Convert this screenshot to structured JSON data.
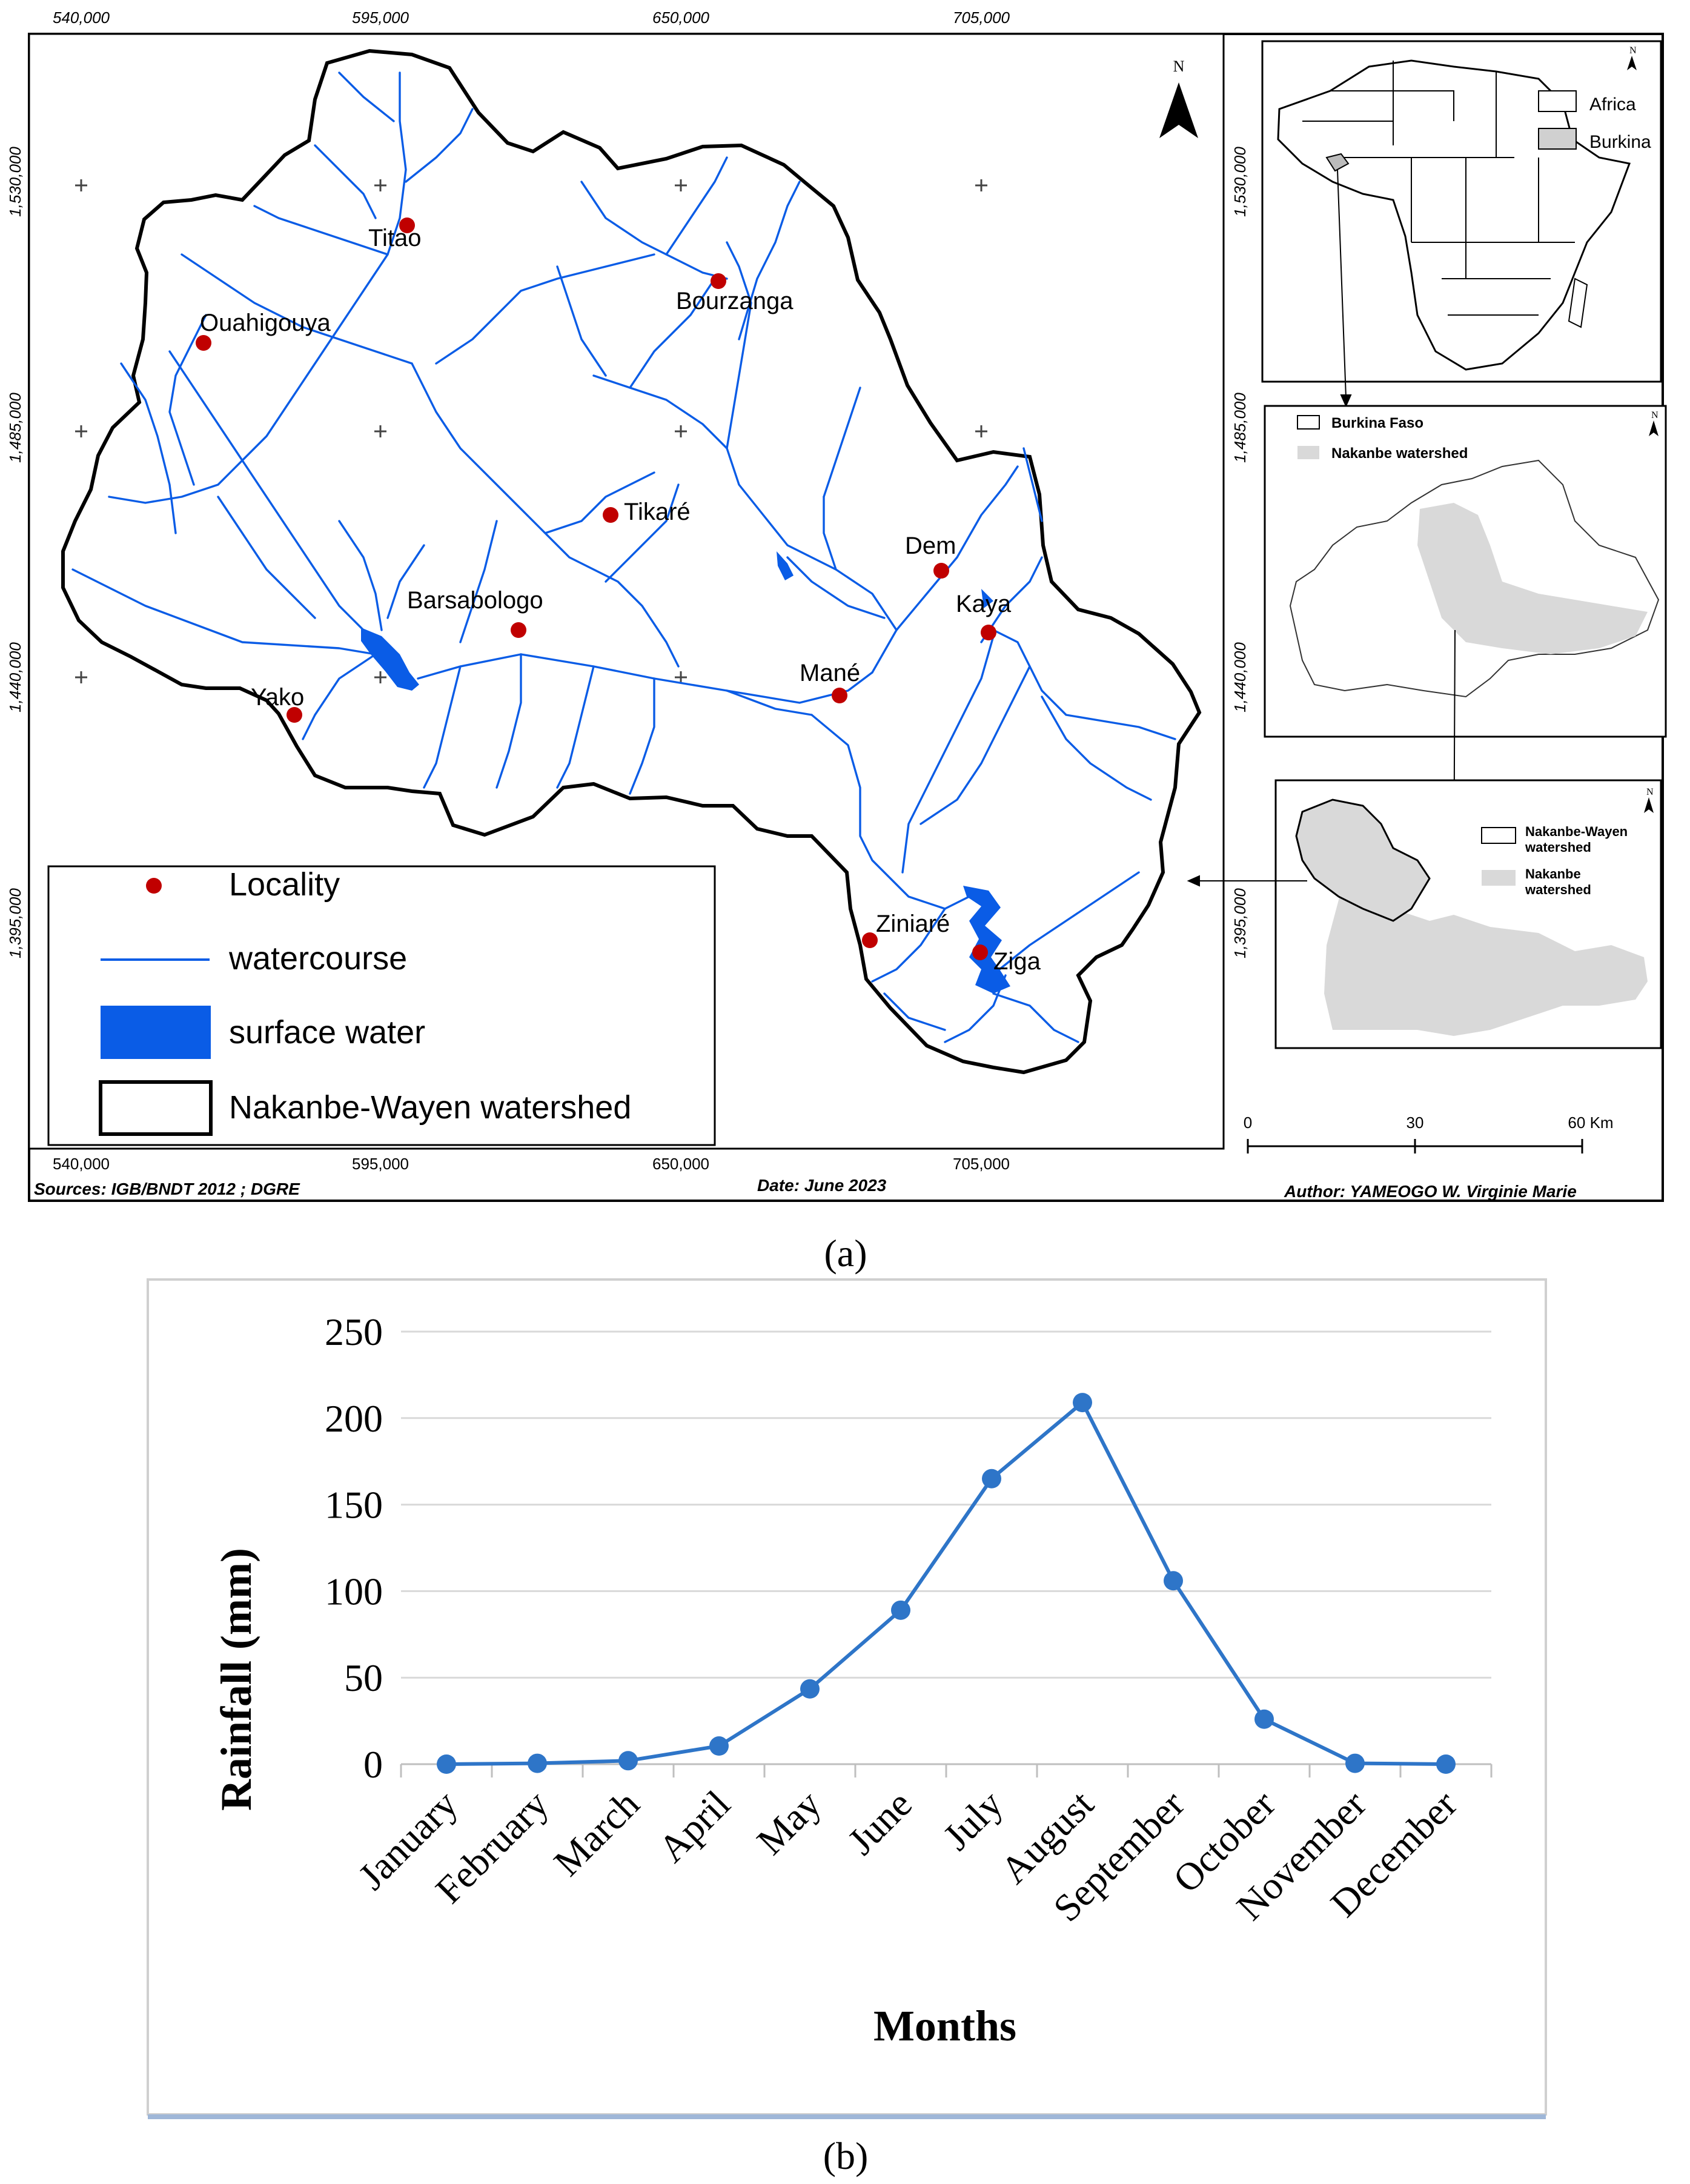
{
  "map": {
    "top_coords": [
      "540,000",
      "595,000",
      "650,000",
      "705,000"
    ],
    "bottom_coords": [
      "540,000",
      "595,000",
      "650,000",
      "705,000"
    ],
    "left_coords": [
      "1,530,000",
      "1,485,000",
      "1,440,000",
      "1,395,000"
    ],
    "right_coords": [
      "1,530,000",
      "1,485,000",
      "1,440,000",
      "1,395,000"
    ],
    "north_label": "N",
    "localities": [
      "Titao",
      "Bourzanga",
      "Ouahigouya",
      "Tikaré",
      "Dem",
      "Barsabologo",
      "Kaya",
      "Mané",
      "Yako",
      "Ziniaré",
      "Ziga"
    ],
    "legend": {
      "locality": "Locality",
      "watercourse": "watercourse",
      "surface_water": "surface water",
      "watershed": "Nakanbe-Wayen watershed"
    },
    "inset_africa": {
      "africa": "Africa",
      "burkina": "Burkina"
    },
    "inset_burkina": {
      "burkina_faso": "Burkina Faso",
      "nakanbe": "Nakanbe watershed"
    },
    "inset_nakanbe": {
      "wayen_line1": "Nakanbe-Wayen",
      "wayen_line2": "watershed",
      "nakanbe_line1": "Nakanbe",
      "nakanbe_line2": "watershed"
    },
    "scale": [
      "0",
      "30",
      "60 Km"
    ],
    "footer": {
      "sources": "Sources: IGB/BNDT 2012 ; DGRE",
      "date": "Date:  June 2023",
      "author": "Author: YAMEOGO W. Virginie Marie"
    },
    "colors": {
      "water": "#0a5ce6",
      "locality": "#c00000",
      "inset_fill": "#d9d9d9",
      "border": "#000000"
    }
  },
  "captions": {
    "a": "(a)",
    "b": "(b)"
  },
  "chart_data": {
    "type": "line",
    "categories": [
      "January",
      "February",
      "March",
      "April",
      "May",
      "June",
      "July",
      "August",
      "September",
      "October",
      "November",
      "December"
    ],
    "series": [
      {
        "values": [
          0,
          0.5,
          2,
          10.5,
          43.5,
          89,
          165,
          209,
          106,
          26,
          0.5,
          0
        ]
      }
    ],
    "xlabel": "Months",
    "ylabel": "Rainfall (mm)",
    "ylim": [
      0,
      250
    ],
    "yticks": [
      "0",
      "50",
      "100",
      "150",
      "200",
      "250"
    ],
    "grid": true,
    "color": "#2e75c8"
  }
}
